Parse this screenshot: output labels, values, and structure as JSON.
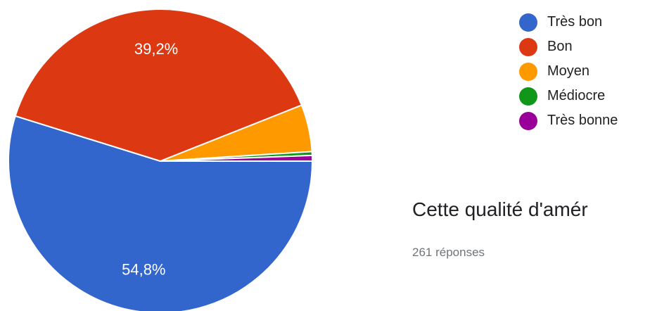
{
  "chart_data": {
    "type": "pie",
    "slices": [
      {
        "label": "Très bon",
        "value": 54.8,
        "color": "#3366cc",
        "shown_label": "54,8%"
      },
      {
        "label": "Bon",
        "value": 39.2,
        "color": "#dc3912",
        "shown_label": "39,2%"
      },
      {
        "label": "Moyen",
        "value": 5.0,
        "color": "#ff9900",
        "shown_label": ""
      },
      {
        "label": "Médiocre",
        "value": 0.4,
        "color": "#109618",
        "shown_label": ""
      },
      {
        "label": "Très bonne",
        "value": 0.6,
        "color": "#990099",
        "shown_label": ""
      }
    ],
    "legend_position": "right"
  },
  "question": {
    "title": "Cette qualité d'amér",
    "responses": "261 réponses"
  }
}
